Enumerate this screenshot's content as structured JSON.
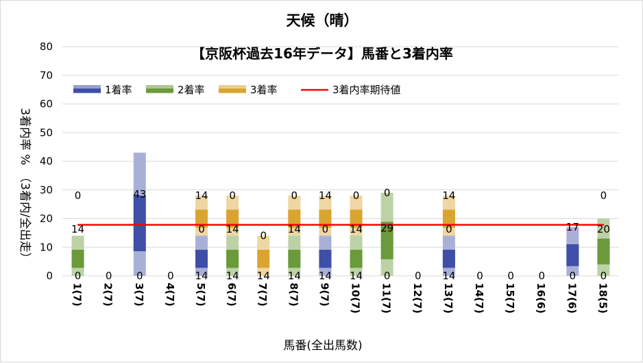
{
  "chart_data": {
    "type": "bar",
    "title": "天候（晴）",
    "subtitle": "【京阪杯過去16年データ】馬番と3着内率",
    "xlabel": "馬番(全出馬数)",
    "ylabel": "3着内率 %　（3着内/全出走）",
    "ylim": [
      0,
      80
    ],
    "yticks": [
      0,
      10,
      20,
      30,
      40,
      50,
      60,
      70,
      80
    ],
    "grid": true,
    "legend_position": "top-left",
    "stacked": true,
    "categories": [
      "1(7)",
      "2(7)",
      "3(7)",
      "4(7)",
      "5(7)",
      "6(7)",
      "7(7)",
      "8(7)",
      "9(7)",
      "10(7)",
      "11(7)",
      "12(7)",
      "13(7)",
      "14(7)",
      "15(7)",
      "16(6)",
      "17(6)",
      "18(5)"
    ],
    "series": [
      {
        "name": "1着率",
        "color": "#3f4fa8",
        "values": [
          0,
          0,
          43,
          0,
          14,
          0,
          0,
          0,
          14,
          0,
          0,
          0,
          14,
          0,
          0,
          0,
          17,
          0
        ]
      },
      {
        "name": "2着率",
        "color": "#6a9a3a",
        "values": [
          14,
          0,
          0,
          0,
          0,
          14,
          0,
          14,
          0,
          14,
          29,
          0,
          0,
          0,
          0,
          0,
          0,
          20
        ]
      },
      {
        "name": "3着率",
        "color": "#d9a530",
        "values": [
          0,
          0,
          0,
          0,
          14,
          14,
          14,
          14,
          14,
          14,
          0,
          0,
          14,
          0,
          0,
          0,
          0,
          0
        ]
      }
    ],
    "bar_labels": [
      [
        "0",
        "14",
        "0"
      ],
      [
        "0"
      ],
      [
        "0",
        "43"
      ],
      [
        "0"
      ],
      [
        "14",
        "0",
        "14"
      ],
      [
        "14",
        "14",
        "0"
      ],
      [
        "14",
        "0"
      ],
      [
        "14",
        "14",
        "0"
      ],
      [
        "14",
        "0",
        "14"
      ],
      [
        "14",
        "14",
        "0"
      ],
      [
        "0",
        "29",
        "0"
      ],
      [
        "0"
      ],
      [
        "14",
        "0",
        "14"
      ],
      [
        "0"
      ],
      [
        "0"
      ],
      [
        "0"
      ],
      [
        "0",
        "17"
      ],
      [
        "0",
        "20",
        "0"
      ]
    ],
    "expected_line": {
      "name": "3着内率期待値",
      "color": "#ff0000",
      "value": 17.8
    }
  }
}
